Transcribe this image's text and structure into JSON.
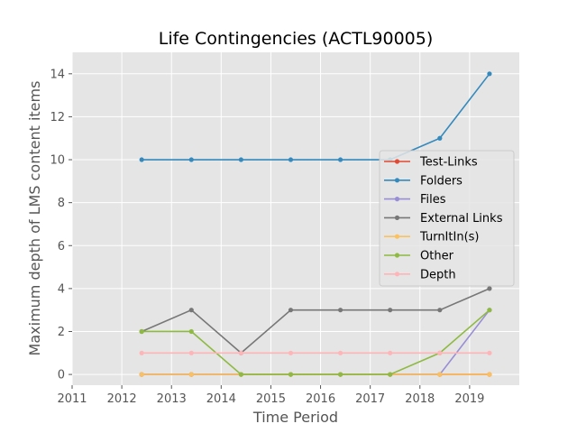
{
  "chart_data": {
    "type": "line",
    "title": "Life Contingencies (ACTL90005)",
    "xlabel": "Time Period",
    "ylabel": "Maximum depth of LMS content items",
    "xlim": [
      2011,
      2020
    ],
    "ylim": [
      -0.5,
      15
    ],
    "xticks": [
      2011,
      2012,
      2013,
      2014,
      2015,
      2016,
      2017,
      2018,
      2019
    ],
    "yticks": [
      0,
      2,
      4,
      6,
      8,
      10,
      12,
      14
    ],
    "x": [
      2012.4,
      2013.4,
      2014.4,
      2015.4,
      2016.4,
      2017.4,
      2018.4,
      2019.4
    ],
    "grid": true,
    "background": "#e5e5e5",
    "legend_position": "center-right",
    "series": [
      {
        "name": "Test-Links",
        "color": "#e24a33",
        "values": [
          0,
          0,
          0,
          0,
          0,
          0,
          0,
          0
        ]
      },
      {
        "name": "Folders",
        "color": "#348abd",
        "values": [
          10,
          10,
          10,
          10,
          10,
          10,
          11,
          14
        ]
      },
      {
        "name": "Files",
        "color": "#988ed5",
        "values": [
          0,
          0,
          0,
          0,
          0,
          0,
          0,
          3
        ]
      },
      {
        "name": "External Links",
        "color": "#777777",
        "values": [
          2,
          3,
          1,
          3,
          3,
          3,
          3,
          4
        ]
      },
      {
        "name": "TurnItIn(s)",
        "color": "#fbc15e",
        "values": [
          0,
          0,
          0,
          0,
          0,
          0,
          0,
          0
        ]
      },
      {
        "name": "Other",
        "color": "#8eba42",
        "values": [
          2,
          2,
          0,
          0,
          0,
          0,
          1,
          3
        ]
      },
      {
        "name": "Depth",
        "color": "#ffb5b8",
        "values": [
          1,
          1,
          1,
          1,
          1,
          1,
          1,
          1
        ]
      }
    ]
  }
}
